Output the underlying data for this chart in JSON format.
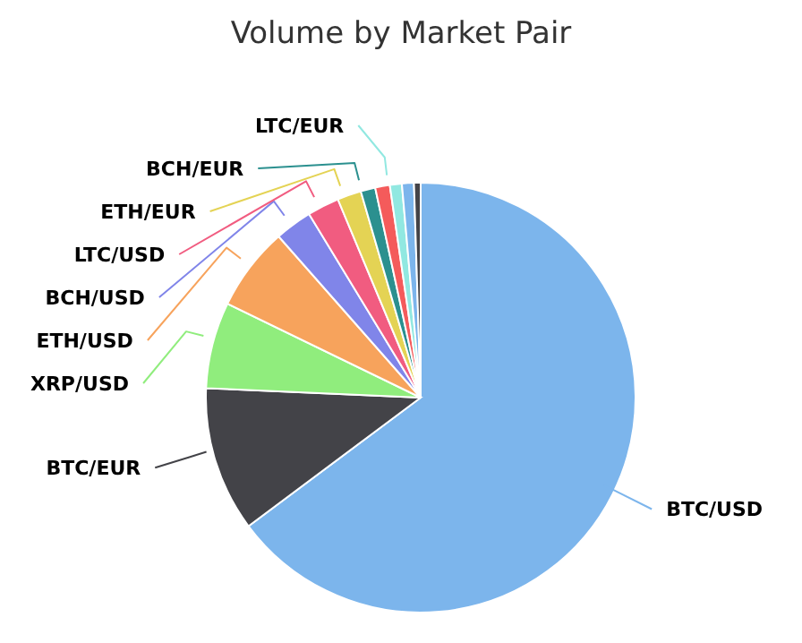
{
  "chart_data": {
    "type": "pie",
    "title": "Volume by Market Pair",
    "categories": [
      "BTC/USD",
      "BTC/EUR",
      "XRP/USD",
      "ETH/USD",
      "BCH/USD",
      "LTC/USD",
      "ETH/EUR",
      "BCH/EUR",
      null,
      "LTC/EUR",
      null,
      null
    ],
    "values": [
      64.8,
      10.9,
      6.5,
      6.3,
      2.8,
      2.4,
      1.8,
      1.1,
      1.1,
      0.9,
      0.9,
      0.5
    ],
    "colors": [
      "#7cb5ec",
      "#434348",
      "#90ed7d",
      "#f7a35c",
      "#8085e9",
      "#f15c80",
      "#e4d354",
      "#2b908f",
      "#f45b5b",
      "#91e8e1",
      "#7cb5ec",
      "#434348"
    ]
  }
}
